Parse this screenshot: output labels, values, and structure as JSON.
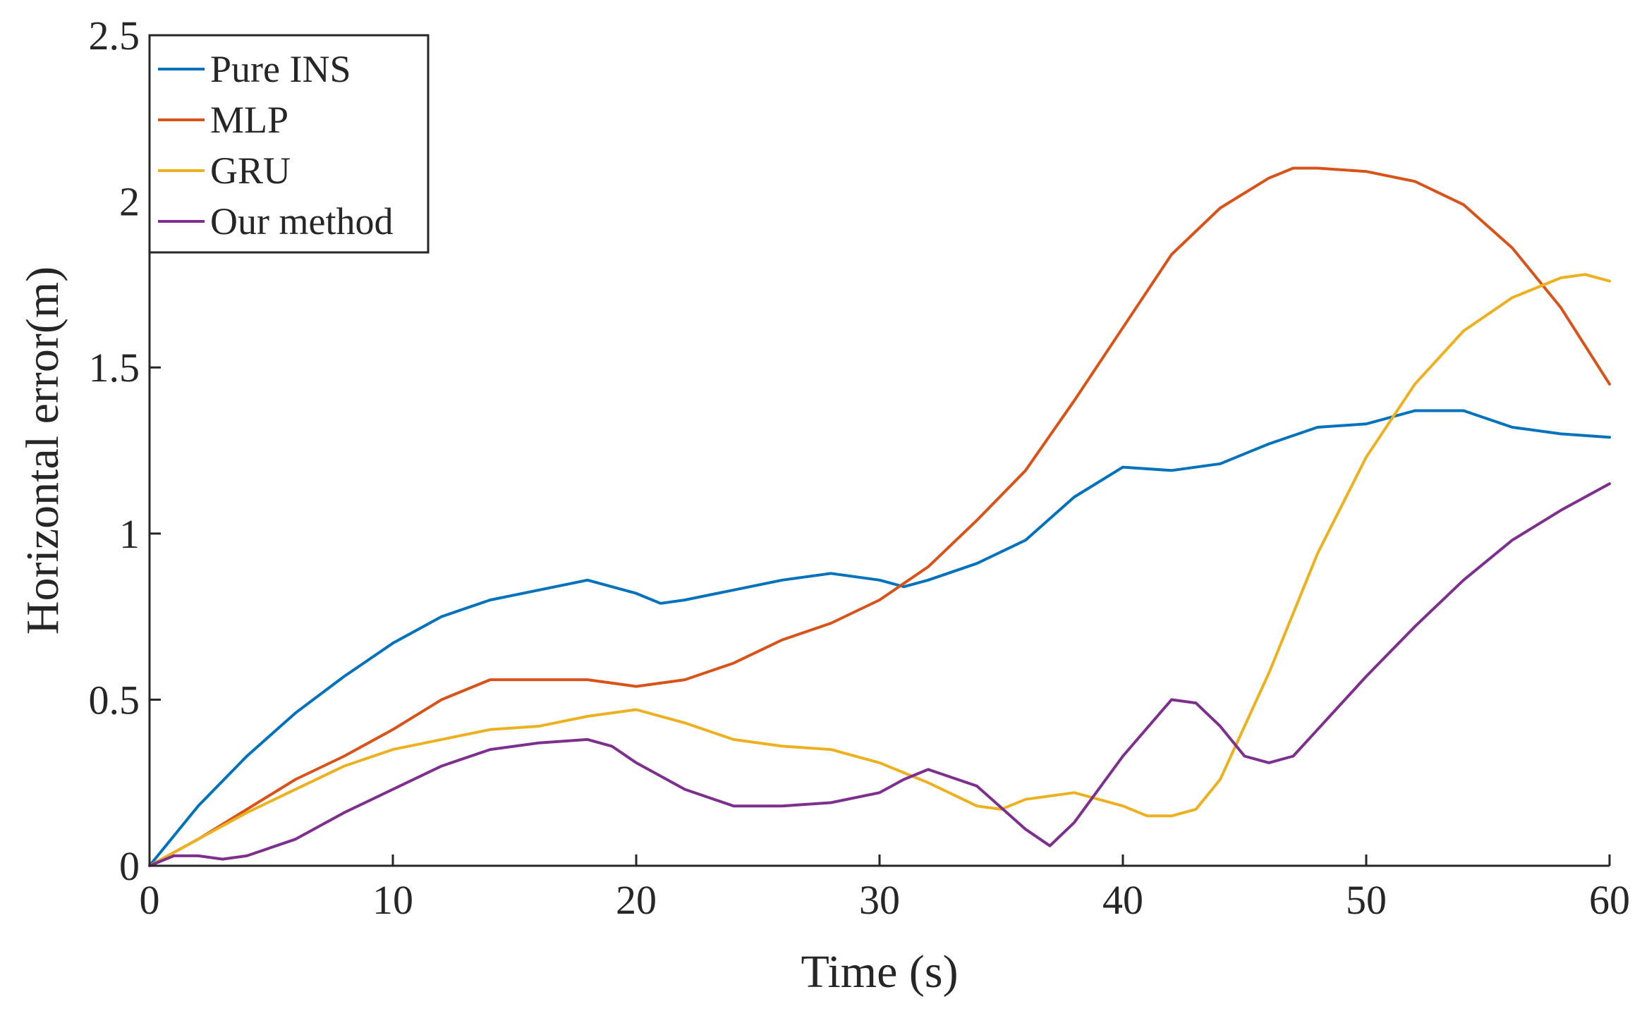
{
  "chart_data": {
    "type": "line",
    "xlabel": "Time (s)",
    "ylabel": "Horizontal error(m)",
    "xlim": [
      0,
      60
    ],
    "ylim": [
      0,
      2.5
    ],
    "xticks": [
      0,
      10,
      20,
      30,
      40,
      50,
      60
    ],
    "yticks": [
      0,
      0.5,
      1,
      1.5,
      2,
      2.5
    ],
    "xtick_labels": [
      "0",
      "10",
      "20",
      "30",
      "40",
      "50",
      "60"
    ],
    "ytick_labels": [
      "0",
      "0.5",
      "1",
      "1.5",
      "2",
      "2.5"
    ],
    "grid": false,
    "legend_position": "top-left",
    "series": [
      {
        "name": "Pure INS",
        "color": "#0072BD",
        "x": [
          0,
          2,
          4,
          6,
          8,
          10,
          12,
          14,
          16,
          18,
          20,
          21,
          22,
          24,
          26,
          28,
          30,
          31,
          32,
          34,
          36,
          38,
          40,
          42,
          44,
          46,
          48,
          50,
          52,
          54,
          56,
          58,
          60
        ],
        "y": [
          0,
          0.18,
          0.33,
          0.46,
          0.57,
          0.67,
          0.75,
          0.8,
          0.83,
          0.86,
          0.82,
          0.79,
          0.8,
          0.83,
          0.86,
          0.88,
          0.86,
          0.84,
          0.86,
          0.91,
          0.98,
          1.11,
          1.2,
          1.19,
          1.21,
          1.27,
          1.32,
          1.33,
          1.37,
          1.37,
          1.32,
          1.3,
          1.29
        ]
      },
      {
        "name": "MLP",
        "color": "#D95319",
        "x": [
          0,
          2,
          4,
          6,
          8,
          10,
          12,
          14,
          16,
          18,
          20,
          22,
          24,
          26,
          28,
          30,
          32,
          34,
          36,
          38,
          40,
          42,
          44,
          46,
          47,
          48,
          50,
          52,
          54,
          56,
          58,
          60
        ],
        "y": [
          0,
          0.08,
          0.17,
          0.26,
          0.33,
          0.41,
          0.5,
          0.56,
          0.56,
          0.56,
          0.54,
          0.56,
          0.61,
          0.68,
          0.73,
          0.8,
          0.9,
          1.04,
          1.19,
          1.4,
          1.62,
          1.84,
          1.98,
          2.07,
          2.1,
          2.1,
          2.09,
          2.06,
          1.99,
          1.86,
          1.68,
          1.45
        ]
      },
      {
        "name": "GRU",
        "color": "#EDB120",
        "x": [
          0,
          2,
          4,
          6,
          8,
          10,
          12,
          14,
          16,
          18,
          20,
          22,
          24,
          26,
          28,
          30,
          32,
          34,
          35,
          36,
          38,
          40,
          41,
          42,
          43,
          44,
          46,
          48,
          50,
          52,
          54,
          56,
          58,
          59,
          60
        ],
        "y": [
          0,
          0.08,
          0.16,
          0.23,
          0.3,
          0.35,
          0.38,
          0.41,
          0.42,
          0.45,
          0.47,
          0.43,
          0.38,
          0.36,
          0.35,
          0.31,
          0.25,
          0.18,
          0.17,
          0.2,
          0.22,
          0.18,
          0.15,
          0.15,
          0.17,
          0.26,
          0.58,
          0.94,
          1.23,
          1.45,
          1.61,
          1.71,
          1.77,
          1.78,
          1.76
        ]
      },
      {
        "name": "Our method",
        "color": "#7E2F8E",
        "x": [
          0,
          1,
          2,
          3,
          4,
          6,
          8,
          10,
          12,
          14,
          16,
          18,
          19,
          20,
          22,
          24,
          26,
          28,
          30,
          31,
          32,
          34,
          36,
          37,
          38,
          40,
          42,
          43,
          44,
          45,
          46,
          47,
          48,
          50,
          52,
          54,
          56,
          58,
          60
        ],
        "y": [
          0,
          0.03,
          0.03,
          0.02,
          0.03,
          0.08,
          0.16,
          0.23,
          0.3,
          0.35,
          0.37,
          0.38,
          0.36,
          0.31,
          0.23,
          0.18,
          0.18,
          0.19,
          0.22,
          0.26,
          0.29,
          0.24,
          0.11,
          0.06,
          0.13,
          0.33,
          0.5,
          0.49,
          0.42,
          0.33,
          0.31,
          0.33,
          0.41,
          0.57,
          0.72,
          0.86,
          0.98,
          1.07,
          1.15
        ]
      }
    ]
  }
}
